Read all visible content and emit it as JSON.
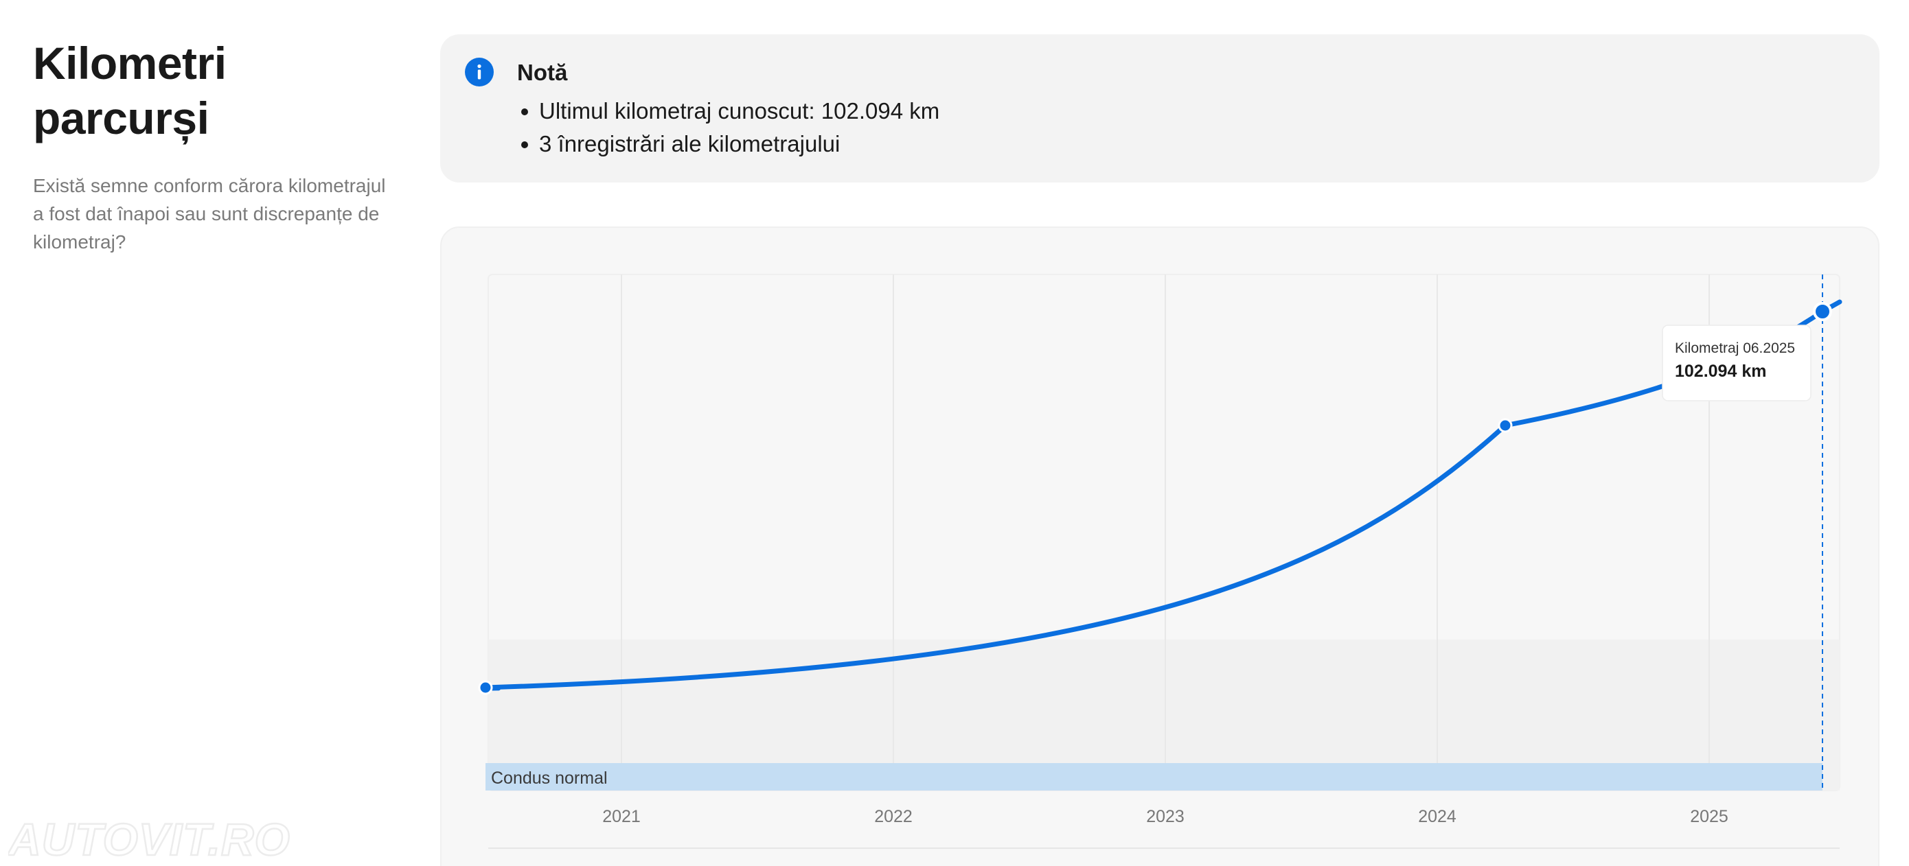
{
  "section": {
    "title_line1": "Kilometri",
    "title_line2": "parcurși",
    "description": "Există semne conform cărora kilometrajul a fost dat înapoi sau sunt discrepanțe de kilometraj?"
  },
  "note": {
    "icon": "info-icon",
    "title": "Notă",
    "items": [
      "Ultimul kilometraj cunoscut: 102.094 km",
      "3 înregistrări ale kilometrajului"
    ]
  },
  "chart_data": {
    "type": "line",
    "title": "",
    "xlabel": "",
    "ylabel": "",
    "x_ticks": [
      "2021",
      "2022",
      "2023",
      "2024",
      "2025"
    ],
    "series": [
      {
        "color": "#0b6fdf",
        "points": [
          {
            "x": "2020-07",
            "y": null
          },
          {
            "x": "2024-04",
            "y": null
          },
          {
            "x": "2025-06",
            "y": 102094
          }
        ]
      }
    ],
    "band": {
      "label": "Condus normal",
      "color": "#c4ddf3"
    },
    "tooltip": {
      "label": "Kilometraj 06.2025",
      "value": "102.094 km"
    },
    "grid": true
  },
  "colors": {
    "accent": "#0b6fdf",
    "card_background": "#f3f3f3",
    "band": "#c4ddf3"
  },
  "watermark": {
    "text": "AUTOVIT.RO"
  }
}
